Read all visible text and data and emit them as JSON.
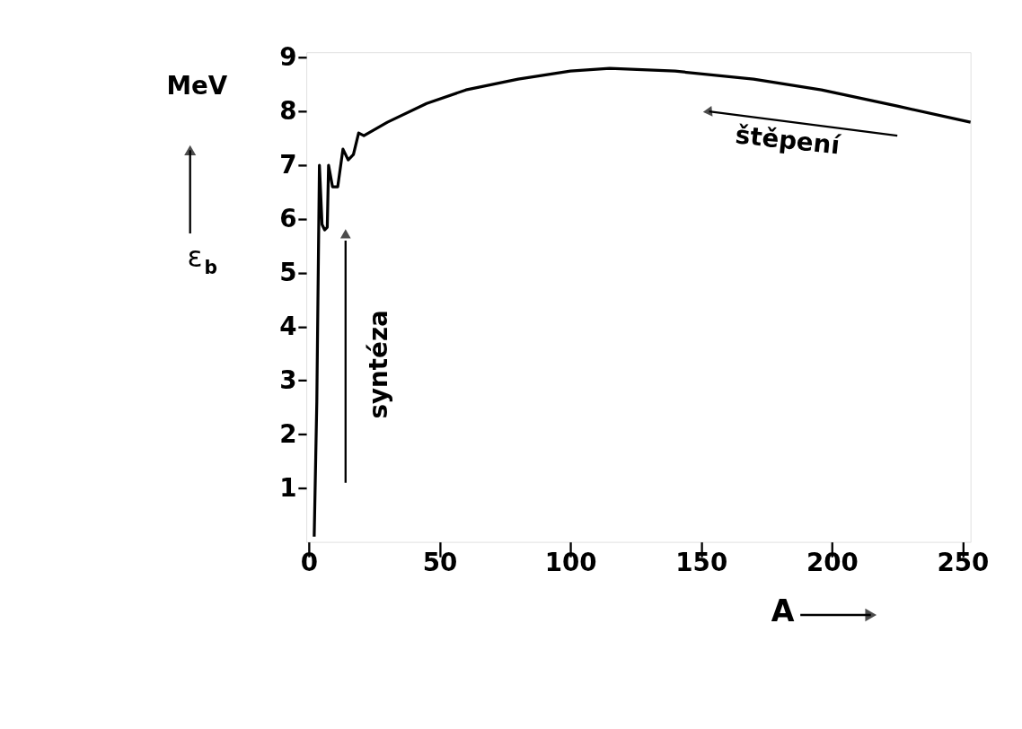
{
  "chart_data": {
    "type": "line",
    "xlabel": "A",
    "ylabel": "ε$_{b}$",
    "annotations": [
      "MeV",
      "syntéza",
      "štěpení"
    ],
    "x": [
      2,
      3,
      4,
      5,
      6,
      7,
      7.5,
      9,
      11,
      13,
      15,
      17,
      19,
      21,
      30,
      45,
      60,
      80,
      100,
      115,
      140,
      170,
      196,
      225,
      253
    ],
    "series": [
      {
        "color": "#000000",
        "values": [
          0.1,
          2.6,
          7.0,
          5.9,
          5.8,
          5.85,
          7.0,
          6.6,
          6.6,
          7.3,
          7.1,
          7.2,
          7.6,
          7.55,
          7.8,
          8.15,
          8.4,
          8.6,
          8.75,
          8.8,
          8.75,
          8.6,
          8.4,
          8.1,
          7.8
        ]
      }
    ],
    "xlim": [
      -1,
      253
    ],
    "ylim": [
      0,
      9.1
    ],
    "xticks": [
      0,
      50,
      100,
      150,
      200,
      250
    ],
    "yticks": [
      1,
      2,
      3,
      4,
      5,
      6,
      7,
      8,
      9
    ],
    "grid": false,
    "marker": "none",
    "line_style": "solid"
  }
}
